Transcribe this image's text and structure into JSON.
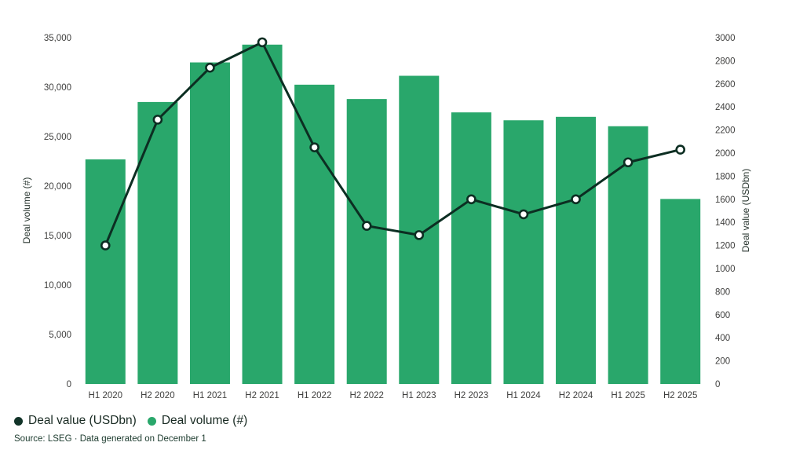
{
  "chart_data": {
    "type": "combo-bar-line",
    "title": "",
    "categories": [
      "H1 2020",
      "H2 2020",
      "H1 2021",
      "H2 2021",
      "H1 2022",
      "H2 2022",
      "H1 2023",
      "H2 2023",
      "H1 2024",
      "H2 2024",
      "H1 2025",
      "H2 2025"
    ],
    "series": [
      {
        "name": "Deal volume (#)",
        "type": "bar",
        "axis": "left",
        "color": "#29A76B",
        "values": [
          22700,
          28500,
          32500,
          34300,
          30250,
          28800,
          31150,
          27450,
          26650,
          27000,
          26050,
          18700
        ]
      },
      {
        "name": "Deal value (USDbn)",
        "type": "line",
        "axis": "right",
        "color": "#0C2E22",
        "marker_fill": "#FFFFFF",
        "values": [
          1200,
          2290,
          2740,
          2960,
          2050,
          1370,
          1290,
          1600,
          1470,
          1600,
          1920,
          2030
        ]
      }
    ],
    "left_axis": {
      "title": "Deal volume (#)",
      "min": 0,
      "max": 35000,
      "step": 5000,
      "tick_format": "thousands"
    },
    "right_axis": {
      "title": "Deal value (USDbn)",
      "min": 0,
      "max": 3000,
      "step": 200
    },
    "grid": false,
    "legend_position": "bottom-left"
  },
  "legend": {
    "items": [
      {
        "label": "Deal value (USDbn)",
        "color": "#123429"
      },
      {
        "label": "Deal volume (#)",
        "color": "#29A76B"
      }
    ]
  },
  "source": {
    "text": "Source: LSEG · Data generated on December 1"
  },
  "colors": {
    "background": "#FFFFFF",
    "bar_green": "#29A76B",
    "line_dark": "#0C2E22",
    "tick_text": "#3E3E3D",
    "legend_text": "#182A22",
    "source_text": "#1B3A2D"
  }
}
